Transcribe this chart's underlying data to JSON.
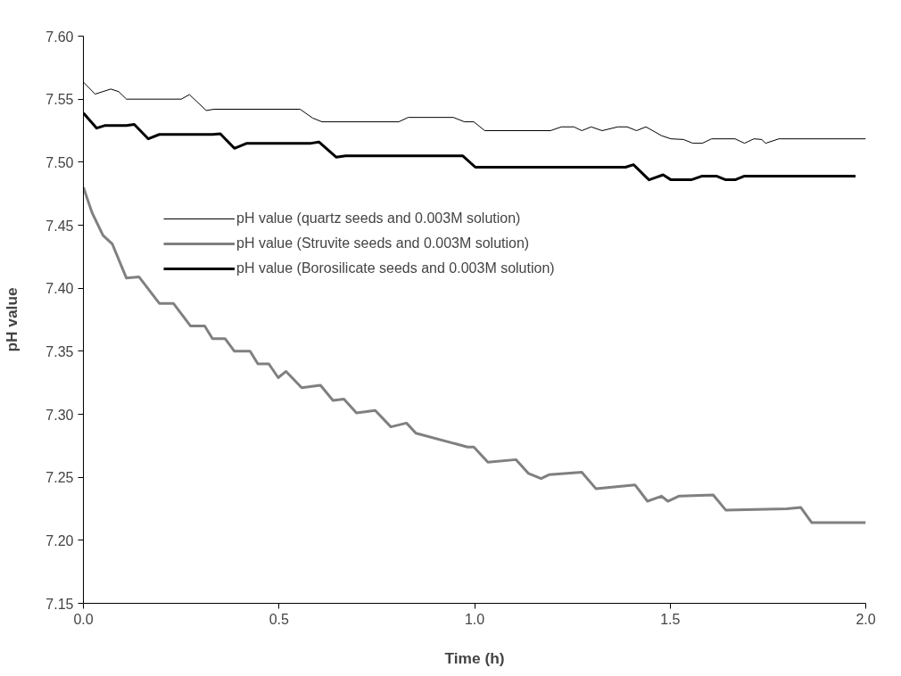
{
  "chart_data": {
    "type": "line",
    "xlabel": "Time (h)",
    "ylabel": "pH value",
    "xlim": [
      0,
      2.0
    ],
    "ylim": [
      7.15,
      7.6
    ],
    "xticks": [
      {
        "value": 0,
        "label": "0.0"
      },
      0.5,
      {
        "value": 1.0,
        "label": "1.0"
      },
      1.5,
      {
        "value": 2.0,
        "label": "2.0"
      }
    ],
    "yticks": [
      {
        "value": 7.15,
        "label": "7.15"
      },
      {
        "value": 7.2,
        "label": "7.20"
      },
      {
        "value": 7.25,
        "label": "7.25"
      },
      {
        "value": 7.3,
        "label": "7.30"
      },
      {
        "value": 7.35,
        "label": "7.35"
      },
      {
        "value": 7.4,
        "label": "7.40"
      },
      {
        "value": 7.45,
        "label": "7.45"
      },
      {
        "value": 7.5,
        "label": "7.50"
      },
      {
        "value": 7.55,
        "label": "7.55"
      },
      {
        "value": 7.6,
        "label": "7.60"
      }
    ],
    "grid": false,
    "legend": "top",
    "marker": "none",
    "line_style": "solid",
    "series": [
      {
        "name": "pH value (quartz seeds and 0.003M solution)",
        "color": "#000000",
        "x": [
          0,
          0.03,
          0.07,
          0.09,
          0.11,
          0.25,
          0.271,
          0.314,
          0.334,
          0.554,
          0.586,
          0.61,
          0.806,
          0.83,
          0.946,
          0.974,
          0.998,
          1.026,
          1.194,
          1.222,
          1.254,
          1.274,
          1.298,
          1.326,
          1.366,
          1.39,
          1.414,
          1.438,
          1.478,
          1.502,
          1.534,
          1.558,
          1.582,
          1.606,
          1.666,
          1.69,
          1.714,
          1.734,
          1.744,
          1.778,
          2.0
        ],
        "values": [
          7.5635,
          7.554,
          7.558,
          7.556,
          7.55,
          7.55,
          7.5536,
          7.541,
          7.542,
          7.542,
          7.535,
          7.532,
          7.532,
          7.5355,
          7.5355,
          7.532,
          7.532,
          7.525,
          7.525,
          7.528,
          7.528,
          7.525,
          7.528,
          7.525,
          7.528,
          7.528,
          7.525,
          7.528,
          7.521,
          7.5185,
          7.518,
          7.515,
          7.515,
          7.5185,
          7.5185,
          7.515,
          7.5185,
          7.518,
          7.515,
          7.5185,
          7.5185
        ]
      },
      {
        "name": "pH value (Struvite seeds and 0.003M solution)",
        "color": "#808080",
        "x": [
          0,
          0.022,
          0.05,
          0.074,
          0.11,
          0.142,
          0.194,
          0.23,
          0.274,
          0.31,
          0.33,
          0.362,
          0.386,
          0.426,
          0.446,
          0.474,
          0.498,
          0.518,
          0.558,
          0.606,
          0.638,
          0.666,
          0.698,
          0.746,
          0.786,
          0.826,
          0.85,
          0.982,
          0.998,
          1.034,
          1.106,
          1.138,
          1.17,
          1.19,
          1.274,
          1.31,
          1.41,
          1.442,
          1.478,
          1.494,
          1.522,
          1.61,
          1.642,
          1.798,
          1.834,
          1.862,
          2.0
        ],
        "values": [
          7.48,
          7.46,
          7.442,
          7.435,
          7.408,
          7.409,
          7.388,
          7.388,
          7.37,
          7.37,
          7.36,
          7.36,
          7.35,
          7.35,
          7.34,
          7.34,
          7.329,
          7.334,
          7.321,
          7.323,
          7.311,
          7.312,
          7.301,
          7.303,
          7.29,
          7.293,
          7.285,
          7.274,
          7.274,
          7.262,
          7.264,
          7.253,
          7.249,
          7.252,
          7.254,
          7.241,
          7.244,
          7.231,
          7.235,
          7.231,
          7.235,
          7.236,
          7.224,
          7.225,
          7.226,
          7.214,
          7.214
        ]
      },
      {
        "name": "pH value (Borosilicate seeds and 0.003M solution)",
        "color": "#000000",
        "x": [
          0,
          0.034,
          0.054,
          0.11,
          0.13,
          0.166,
          0.194,
          0.33,
          0.35,
          0.386,
          0.418,
          0.582,
          0.602,
          0.646,
          0.67,
          0.97,
          1.002,
          1.386,
          1.406,
          1.446,
          1.482,
          1.502,
          1.554,
          1.582,
          1.618,
          1.642,
          1.666,
          1.69,
          1.974
        ],
        "values": [
          7.539,
          7.527,
          7.529,
          7.529,
          7.53,
          7.5185,
          7.522,
          7.522,
          7.5225,
          7.511,
          7.515,
          7.515,
          7.516,
          7.504,
          7.505,
          7.505,
          7.496,
          7.496,
          7.498,
          7.486,
          7.49,
          7.486,
          7.486,
          7.489,
          7.489,
          7.486,
          7.486,
          7.489,
          7.489
        ]
      }
    ]
  }
}
